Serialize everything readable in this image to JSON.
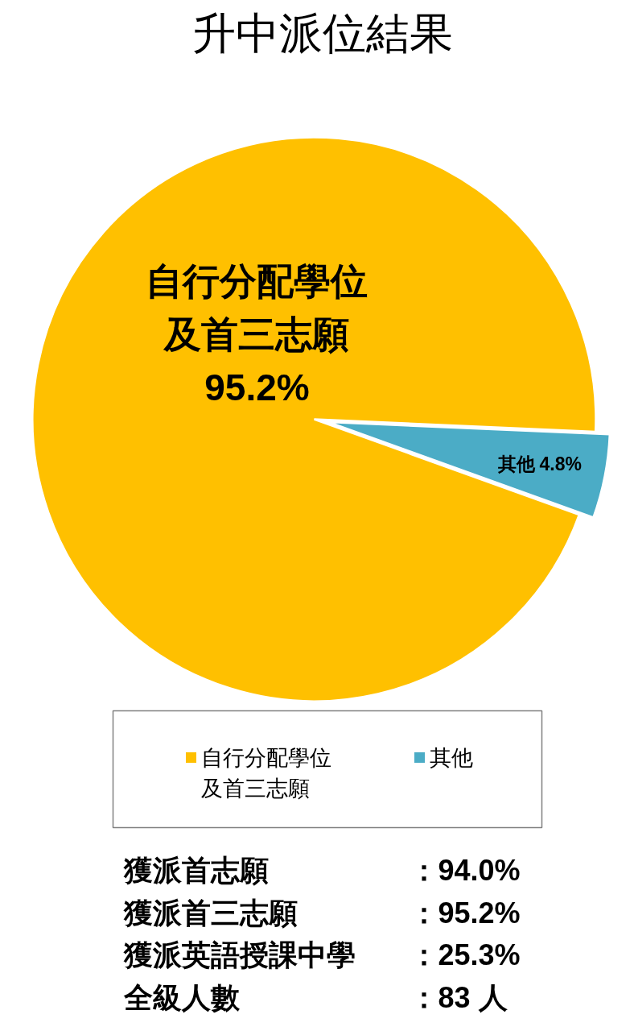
{
  "chart_data": {
    "type": "pie",
    "title": "升中派位結果",
    "categories": [
      "自行分配學位及首三志願",
      "其他"
    ],
    "values": [
      95.2,
      4.8
    ],
    "colors": [
      "#ffc000",
      "#4bacc6"
    ],
    "value_labels": [
      "95.2%",
      "4.8%"
    ],
    "legend": "bottom",
    "annotations": [
      "獲派首志願：94.0%",
      "獲派首三志願：95.2%",
      "獲派英語授課中學：25.3%",
      "全級人數：83 人"
    ]
  }
}
